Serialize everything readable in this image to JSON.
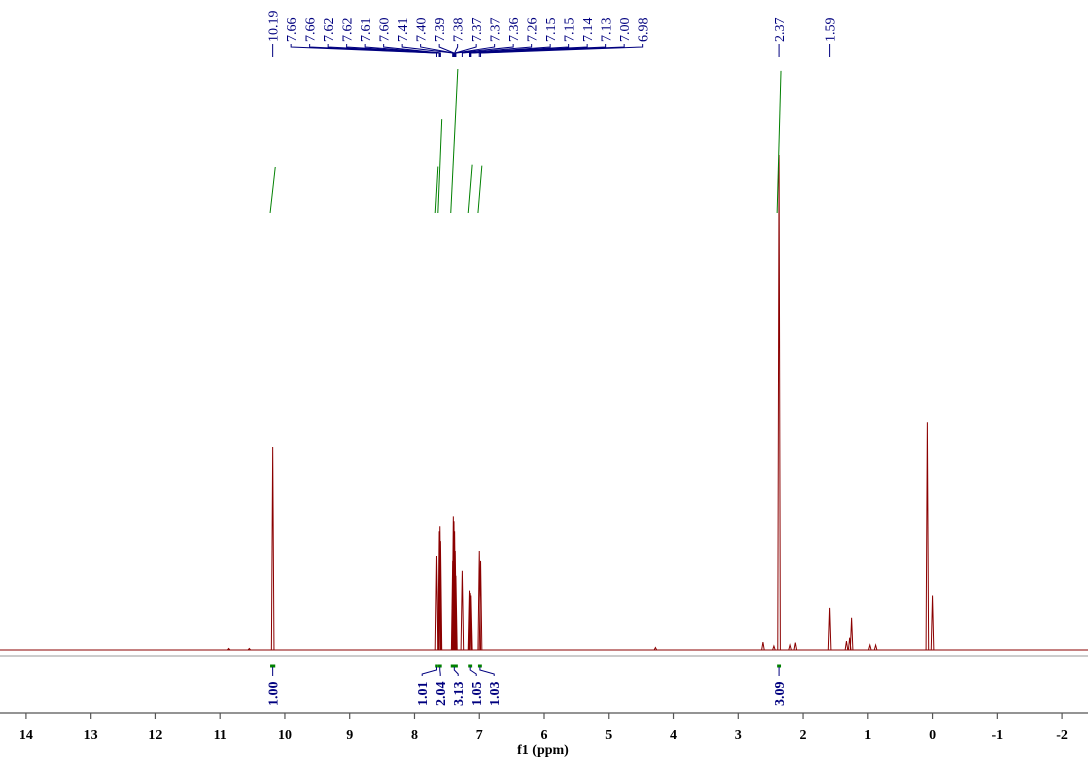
{
  "chart_data": {
    "type": "spectrum",
    "x_label": "f1 (ppm)",
    "xlim": [
      14.4,
      -2.4
    ],
    "ylim": [
      0,
      100
    ],
    "xticks": [
      14,
      13,
      12,
      11,
      10,
      9,
      8,
      7,
      6,
      5,
      4,
      3,
      2,
      1,
      0,
      -1,
      -2
    ],
    "color": "#8b0000",
    "label_color": "#00007f",
    "integral_color": "#008000",
    "spectrum": {
      "ppm": [
        10.87,
        10.55,
        10.19,
        7.66,
        7.62,
        7.61,
        7.6,
        7.41,
        7.4,
        7.39,
        7.38,
        7.37,
        7.36,
        7.26,
        7.15,
        7.14,
        7.13,
        7.0,
        6.98,
        4.28,
        2.62,
        2.45,
        2.37,
        2.2,
        2.12,
        1.59,
        1.33,
        1.28,
        1.25,
        0.97,
        0.88,
        0.08,
        0.0
      ],
      "intensity": [
        0.3,
        0.3,
        41,
        19,
        24,
        25,
        22,
        18,
        27,
        26,
        24,
        20,
        15,
        16,
        12,
        11.5,
        11,
        20,
        18,
        0.5,
        1.6,
        0.8,
        100,
        1,
        1.5,
        8.5,
        1.8,
        2.5,
        6.5,
        1,
        1,
        46,
        11
      ]
    },
    "peak_labels": [
      {
        "value": 10.19,
        "label": "10.19"
      },
      {
        "value": 7.66,
        "label": "7.66"
      },
      {
        "value": 7.66,
        "label": "7.66"
      },
      {
        "value": 7.62,
        "label": "7.62"
      },
      {
        "value": 7.62,
        "label": "7.62"
      },
      {
        "value": 7.61,
        "label": "7.61"
      },
      {
        "value": 7.6,
        "label": "7.60"
      },
      {
        "value": 7.41,
        "label": "7.41"
      },
      {
        "value": 7.4,
        "label": "7.40"
      },
      {
        "value": 7.39,
        "label": "7.39"
      },
      {
        "value": 7.38,
        "label": "7.38"
      },
      {
        "value": 7.37,
        "label": "7.37"
      },
      {
        "value": 7.37,
        "label": "7.37"
      },
      {
        "value": 7.36,
        "label": "7.36"
      },
      {
        "value": 7.26,
        "label": "7.26"
      },
      {
        "value": 7.15,
        "label": "7.15"
      },
      {
        "value": 7.15,
        "label": "7.15"
      },
      {
        "value": 7.14,
        "label": "7.14"
      },
      {
        "value": 7.13,
        "label": "7.13"
      },
      {
        "value": 7.0,
        "label": "7.00"
      },
      {
        "value": 6.98,
        "label": "6.98"
      },
      {
        "value": 2.37,
        "label": "2.37"
      },
      {
        "value": 1.59,
        "label": "1.59"
      }
    ],
    "integrals": [
      {
        "value": 1.0,
        "label": "1.00",
        "from": 10.23,
        "to": 10.15
      },
      {
        "value": 1.01,
        "label": "1.01",
        "from": 7.68,
        "to": 7.64
      },
      {
        "value": 2.04,
        "label": "2.04",
        "from": 7.64,
        "to": 7.58
      },
      {
        "value": 3.13,
        "label": "3.13",
        "from": 7.44,
        "to": 7.33
      },
      {
        "value": 1.05,
        "label": "1.05",
        "from": 7.17,
        "to": 7.11
      },
      {
        "value": 1.03,
        "label": "1.03",
        "from": 7.02,
        "to": 6.96
      },
      {
        "value": 3.09,
        "label": "3.09",
        "from": 2.4,
        "to": 2.34
      }
    ]
  }
}
